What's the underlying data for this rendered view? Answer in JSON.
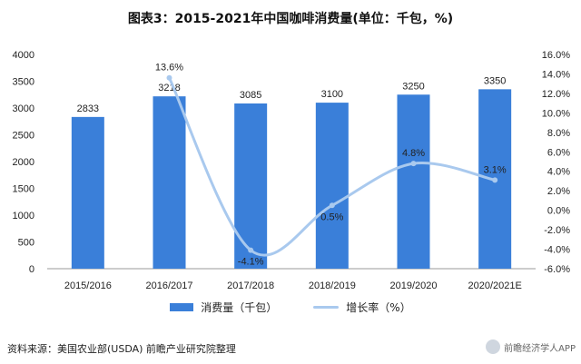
{
  "title": "图表3：2015-2021年中国咖啡消费量(单位：千包，%)",
  "source": "资料来源：美国农业部(USDA) 前瞻产业研究院整理",
  "corner_label": "前瞻经济学人APP",
  "colors": {
    "bar": "#3a7fd9",
    "line": "#a9c9ee"
  },
  "chart_data": {
    "type": "bar+line",
    "title": "图表3：2015-2021年中国咖啡消费量(单位：千包，%)",
    "categories": [
      "2015/2016",
      "2016/2017",
      "2017/2018",
      "2018/2019",
      "2019/2020",
      "2020/2021E"
    ],
    "left_axis": {
      "ylim": [
        0,
        4000
      ],
      "ticks": [
        0,
        500,
        1000,
        1500,
        2000,
        2500,
        3000,
        3500,
        4000
      ]
    },
    "right_axis": {
      "ylim": [
        -6.0,
        16.0
      ],
      "ticks": [
        "-6.0%",
        "-4.0%",
        "-2.0%",
        "0.0%",
        "2.0%",
        "4.0%",
        "6.0%",
        "8.0%",
        "10.0%",
        "12.0%",
        "14.0%",
        "16.0%"
      ]
    },
    "series": [
      {
        "name": "消费量（千包）",
        "type": "bar",
        "axis": "left",
        "values": [
          2833,
          3218,
          3085,
          3100,
          3250,
          3350
        ],
        "labels": [
          "2833",
          "3218",
          "3085",
          "3100",
          "3250",
          "3350"
        ]
      },
      {
        "name": "增长率（%）",
        "type": "line",
        "axis": "right",
        "values": [
          null,
          13.6,
          -4.1,
          0.5,
          4.8,
          3.1
        ],
        "labels": [
          "",
          "13.6%",
          "-4.1%",
          "0.5%",
          "4.8%",
          "3.1%"
        ]
      }
    ],
    "grid": false,
    "legend": "bottom"
  }
}
